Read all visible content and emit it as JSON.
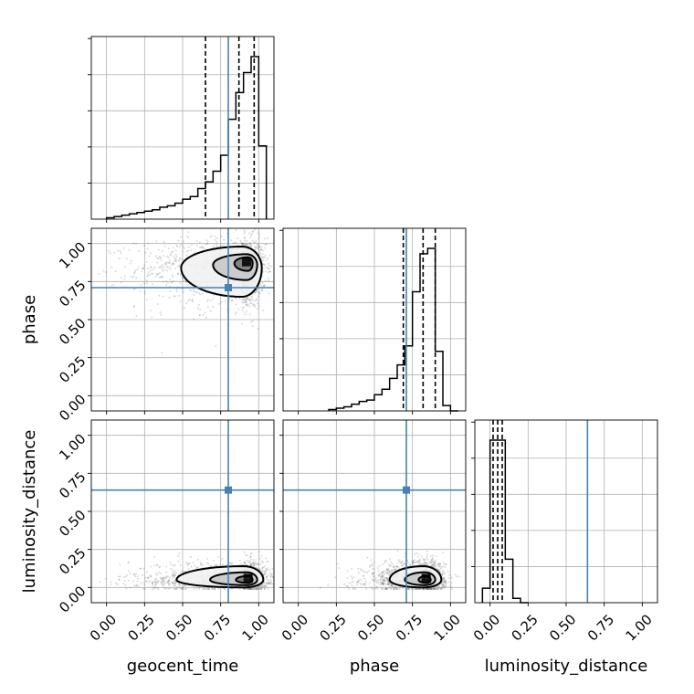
{
  "chart_data": {
    "type": "corner",
    "parameters": [
      "geocent_time",
      "phase",
      "luminosity_distance"
    ],
    "truths": [
      0.8,
      0.71,
      0.64
    ],
    "truth_color": "#4682b4",
    "grid": true,
    "axis_range": [
      -0.1,
      1.1
    ],
    "tick_labels": [
      "0.00",
      "0.25",
      "0.50",
      "0.75",
      "1.00"
    ],
    "tick_values": [
      0,
      0.25,
      0.5,
      0.75,
      1.0
    ],
    "histograms": [
      {
        "parameter": "geocent_time",
        "bin_edges": [
          0.0,
          0.05,
          0.1,
          0.15,
          0.2,
          0.25,
          0.3,
          0.35,
          0.4,
          0.45,
          0.5,
          0.55,
          0.6,
          0.65,
          0.7,
          0.75,
          0.8,
          0.85,
          0.9,
          0.95,
          1.0,
          1.05
        ],
        "counts": [
          1,
          2,
          3,
          4,
          5,
          6,
          7,
          9,
          10,
          12,
          15,
          17,
          23,
          28,
          36,
          48,
          75,
          95,
          110,
          122,
          55
        ],
        "quantiles": [
          0.65,
          0.87,
          0.97
        ]
      },
      {
        "parameter": "phase",
        "bin_edges": [
          0.2,
          0.25,
          0.3,
          0.35,
          0.4,
          0.45,
          0.5,
          0.55,
          0.6,
          0.65,
          0.7,
          0.75,
          0.8,
          0.85,
          0.9,
          0.95,
          1.0,
          1.05
        ],
        "counts": [
          1,
          2,
          3,
          5,
          7,
          8,
          12,
          16,
          24,
          34,
          48,
          88,
          116,
          120,
          44,
          4,
          0
        ],
        "quantiles": [
          0.69,
          0.82,
          0.9
        ]
      },
      {
        "parameter": "luminosity_distance",
        "bin_edges": [
          -0.05,
          0.0,
          0.05,
          0.1,
          0.15,
          0.2,
          0.25
        ],
        "counts": [
          10,
          112,
          112,
          30,
          3,
          0
        ],
        "quantiles": [
          0.02,
          0.05,
          0.08
        ]
      }
    ],
    "scatter_2d": [
      {
        "x_param": "geocent_time",
        "y_param": "phase",
        "peak": [
          0.92,
          0.87
        ],
        "contour_levels": [
          {
            "cx": 0.89,
            "cy": 0.84,
            "rx_left": 0.4,
            "rx_right": 0.13,
            "ry_up": 0.14,
            "ry_down": 0.19
          },
          {
            "cx": 0.92,
            "cy": 0.86,
            "rx_left": 0.22,
            "rx_right": 0.07,
            "ry_up": 0.07,
            "ry_down": 0.1
          },
          {
            "cx": 0.93,
            "cy": 0.87,
            "rx_left": 0.09,
            "rx_right": 0.03,
            "ry_up": 0.04,
            "ry_down": 0.05
          }
        ]
      },
      {
        "x_param": "geocent_time",
        "y_param": "luminosity_distance",
        "peak": [
          0.93,
          0.05
        ],
        "contour_levels": [
          {
            "cx": 0.9,
            "cy": 0.05,
            "rx_left": 0.44,
            "rx_right": 0.13,
            "ry_up": 0.09,
            "ry_down": 0.05
          },
          {
            "cx": 0.92,
            "cy": 0.05,
            "rx_left": 0.24,
            "rx_right": 0.07,
            "ry_up": 0.05,
            "ry_down": 0.035
          },
          {
            "cx": 0.93,
            "cy": 0.05,
            "rx_left": 0.08,
            "rx_right": 0.03,
            "ry_up": 0.025,
            "ry_down": 0.02
          }
        ]
      },
      {
        "x_param": "phase",
        "y_param": "luminosity_distance",
        "peak": [
          0.84,
          0.05
        ],
        "contour_levels": [
          {
            "cx": 0.82,
            "cy": 0.05,
            "rx_left": 0.22,
            "rx_right": 0.12,
            "ry_up": 0.09,
            "ry_down": 0.05
          },
          {
            "cx": 0.83,
            "cy": 0.05,
            "rx_left": 0.13,
            "rx_right": 0.07,
            "ry_up": 0.05,
            "ry_down": 0.035
          },
          {
            "cx": 0.84,
            "cy": 0.05,
            "rx_left": 0.05,
            "rx_right": 0.03,
            "ry_up": 0.025,
            "ry_down": 0.02
          }
        ]
      }
    ]
  }
}
